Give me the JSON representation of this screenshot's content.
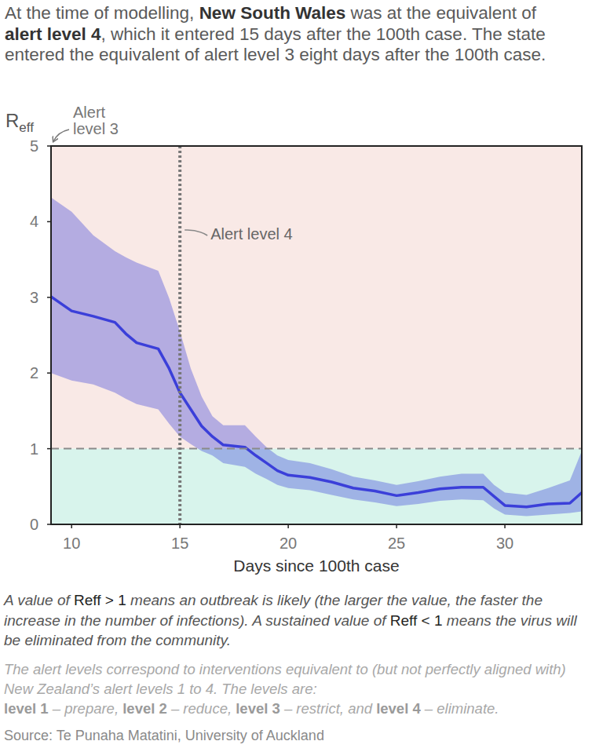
{
  "chart_data": {
    "type": "line",
    "title": [
      {
        "text": "At the time of modelling, ",
        "bold": false
      },
      {
        "text": "New South Wales",
        "bold": true
      },
      {
        "text": " was at the equivalent of ",
        "bold": false
      },
      {
        "text": "alert level 4",
        "bold": true
      },
      {
        "text": ", which it entered 15 days after the 100th case. The state entered the equivalent of alert level 3 eight days after the 100th case.",
        "bold": false
      }
    ],
    "ylabel": {
      "text": "R",
      "subscript": "eff"
    },
    "xlabel": "Days since 100th case",
    "x": [
      9.05,
      10,
      11,
      12,
      12.5,
      13,
      14,
      14.5,
      15,
      15.5,
      16,
      16.5,
      17,
      18,
      18.5,
      19,
      19.5,
      20,
      21,
      22,
      23,
      24,
      25,
      26,
      27,
      28,
      29,
      29.5,
      30,
      31,
      32,
      33,
      33.55
    ],
    "series": [
      {
        "color": "#3b3fd9",
        "values": [
          3.01,
          2.82,
          2.75,
          2.67,
          2.52,
          2.4,
          2.32,
          2.06,
          1.74,
          1.52,
          1.3,
          1.16,
          1.05,
          1.02,
          0.91,
          0.81,
          0.71,
          0.65,
          0.62,
          0.56,
          0.48,
          0.44,
          0.38,
          0.42,
          0.47,
          0.49,
          0.49,
          0.37,
          0.25,
          0.23,
          0.27,
          0.28,
          0.42
        ],
        "lower": [
          2.0,
          1.9,
          1.85,
          1.74,
          1.66,
          1.59,
          1.52,
          1.33,
          1.16,
          1.06,
          0.97,
          0.91,
          0.81,
          0.76,
          0.67,
          0.6,
          0.52,
          0.48,
          0.45,
          0.39,
          0.33,
          0.29,
          0.24,
          0.27,
          0.31,
          0.33,
          0.32,
          0.21,
          0.13,
          0.11,
          0.13,
          0.15,
          0.17
        ],
        "upper": [
          4.32,
          4.13,
          3.82,
          3.61,
          3.53,
          3.46,
          3.35,
          2.99,
          2.55,
          2.06,
          1.69,
          1.43,
          1.31,
          1.31,
          1.16,
          1.02,
          0.91,
          0.85,
          0.81,
          0.73,
          0.63,
          0.58,
          0.52,
          0.57,
          0.63,
          0.67,
          0.67,
          0.52,
          0.42,
          0.39,
          0.48,
          0.58,
          0.97
        ]
      }
    ],
    "xlim": [
      9.05,
      33.55
    ],
    "ylim": [
      0,
      5
    ],
    "xticks": [
      10,
      15,
      20,
      25,
      30
    ],
    "yticks": [
      0,
      1,
      2,
      3,
      4,
      5
    ],
    "threshold": 1,
    "annotations": [
      {
        "text": "Alert level 3",
        "x": 8
      },
      {
        "text": "Alert level 4",
        "x": 15
      }
    ],
    "notes": [
      [
        {
          "text": "A value of ",
          "bold": false
        },
        {
          "text": "Reff > 1",
          "bold": true
        },
        {
          "text": " means an outbreak is likely (the larger the value, the faster the increase in the number of infections). A sustained value of ",
          "bold": false
        },
        {
          "text": "Reff < 1",
          "bold": true
        },
        {
          "text": " means the virus will be eliminated from the community.",
          "bold": false
        }
      ],
      [
        {
          "text": "The alert levels correspond to interventions equivalent to (but not perfectly aligned with) New Zealand’s alert levels 1 to 4. The levels are:",
          "bold": false
        }
      ],
      [
        {
          "text": "level 1",
          "bold": true
        },
        {
          "text": " – prepare, ",
          "bold": false
        },
        {
          "text": "level 2",
          "bold": true
        },
        {
          "text": " – reduce, ",
          "bold": false
        },
        {
          "text": "level 3",
          "bold": true
        },
        {
          "text": " – restrict, and ",
          "bold": false
        },
        {
          "text": "level 4",
          "bold": true
        },
        {
          "text": " – eliminate.",
          "bold": false
        }
      ]
    ],
    "source": "Source: Te Punaha Matatini, University of Auckland"
  }
}
